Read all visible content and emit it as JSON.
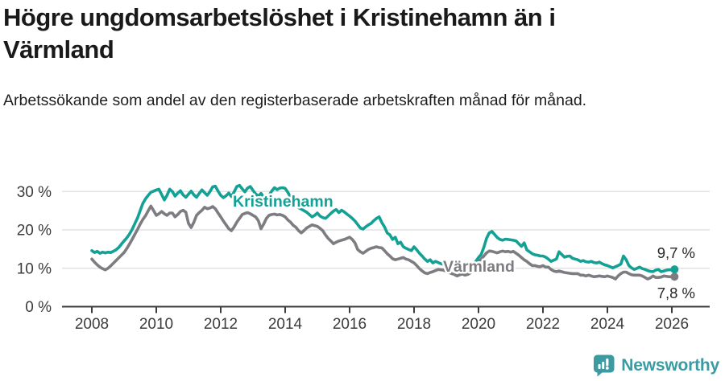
{
  "header": {
    "title": "Högre ungdomsarbetslöshet i Kristinehamn än i Värmland",
    "subtitle": "Arbetssökande som andel av den registerbaserade arbetskraften månad för månad."
  },
  "footer": {
    "brand": "Newsworthy",
    "brand_color": "#3b9aa2",
    "logo_icon": "bar-chart-speech-bubble-icon"
  },
  "colors": {
    "kristinehamn": "#14a195",
    "varmland": "#7c7c81",
    "axis_text": "#3c3c3c",
    "end_label_text": "#262626",
    "gridline": "#dcdcdc",
    "axis_line": "#3c3c3c"
  },
  "chart_data": {
    "type": "line",
    "unit": "%",
    "frequency": "monthly",
    "start_year": 2008,
    "start_month": 1,
    "end_year": 2026,
    "end_month": 2,
    "grid": true,
    "legend_position": "inline",
    "x_axis": {
      "tick_years": [
        2008,
        2010,
        2012,
        2014,
        2016,
        2018,
        2020,
        2022,
        2024,
        2026
      ]
    },
    "y_axis": {
      "range": [
        0,
        33
      ],
      "ticks": [
        {
          "value": 30,
          "label": "30 %"
        },
        {
          "value": 20,
          "label": "20 %"
        },
        {
          "value": 10,
          "label": "10 %"
        },
        {
          "value": 0,
          "label": "0 %"
        }
      ]
    },
    "series": [
      {
        "name": "Kristinehamn",
        "color": "#14a195",
        "end_label": "9,7 %",
        "end_value": 9.7,
        "values": [
          14.6,
          14.1,
          14.4,
          13.9,
          14.2,
          14.0,
          14.2,
          14.1,
          14.4,
          14.8,
          15.4,
          16.3,
          17.1,
          17.9,
          18.9,
          20.1,
          21.6,
          23.1,
          25.0,
          26.9,
          28.1,
          29.0,
          29.8,
          30.1,
          30.4,
          30.6,
          29.2,
          27.8,
          29.0,
          30.6,
          30.0,
          28.8,
          29.6,
          30.2,
          29.1,
          28.5,
          29.3,
          30.1,
          29.1,
          28.5,
          29.5,
          30.4,
          29.7,
          29.0,
          30.0,
          31.2,
          31.4,
          30.1,
          29.0,
          28.4,
          28.9,
          29.6,
          28.7,
          29.9,
          31.3,
          31.6,
          30.7,
          29.9,
          30.9,
          31.3,
          30.3,
          29.4,
          28.8,
          29.5,
          28.6,
          27.9,
          29.0,
          30.1,
          31.0,
          30.5,
          30.9,
          31.0,
          30.8,
          29.8,
          28.5,
          27.2,
          26.2,
          25.8,
          25.4,
          25.0,
          24.6,
          24.0,
          23.4,
          23.8,
          24.4,
          23.6,
          23.2,
          23.0,
          23.6,
          24.3,
          24.9,
          25.3,
          24.5,
          25.1,
          24.7,
          24.1,
          23.6,
          23.0,
          22.3,
          21.4,
          20.5,
          20.2,
          20.8,
          21.3,
          21.7,
          22.4,
          23.0,
          23.4,
          21.9,
          20.8,
          19.2,
          18.7,
          17.5,
          18.1,
          16.4,
          16.8,
          15.6,
          15.2,
          14.9,
          14.6,
          15.6,
          14.8,
          13.9,
          13.2,
          12.4,
          11.8,
          12.2,
          11.4,
          11.8,
          11.5,
          11.2,
          11.0,
          11.0,
          10.6,
          10.2,
          10.4,
          10.0,
          9.8,
          9.6,
          9.9,
          10.2,
          9.8,
          10.5,
          11.8,
          12.8,
          13.6,
          15.5,
          17.8,
          19.2,
          19.6,
          18.8,
          18.0,
          17.5,
          17.3,
          17.6,
          17.5,
          17.4,
          17.3,
          17.1,
          16.4,
          15.7,
          16.6,
          14.8,
          14.3,
          13.8,
          13.5,
          13.4,
          13.2,
          13.2,
          12.9,
          12.4,
          11.8,
          12.1,
          12.4,
          14.3,
          13.6,
          12.9,
          13.1,
          13.2,
          12.6,
          12.4,
          12.2,
          11.8,
          12.0,
          11.7,
          11.6,
          11.8,
          11.5,
          11.4,
          11.6,
          11.2,
          10.9,
          10.7,
          10.4,
          10.1,
          10.4,
          10.7,
          11.1,
          13.2,
          12.2,
          10.7,
          10.1,
          9.7,
          10.0,
          10.3,
          9.9,
          9.7,
          9.4,
          9.2,
          9.1,
          9.5,
          9.7,
          9.1,
          9.3,
          9.5,
          9.6,
          9.6,
          9.7
        ]
      },
      {
        "name": "Värmland",
        "color": "#7c7c81",
        "end_label": "7,8 %",
        "end_value": 7.8,
        "values": [
          12.4,
          11.6,
          10.9,
          10.3,
          9.9,
          9.6,
          10.0,
          10.6,
          11.3,
          12.0,
          12.7,
          13.4,
          14.1,
          15.1,
          16.3,
          17.5,
          18.8,
          20.1,
          21.5,
          22.7,
          23.7,
          25.0,
          26.2,
          25.0,
          23.8,
          24.2,
          24.8,
          24.2,
          23.8,
          24.4,
          24.4,
          23.4,
          24.0,
          24.8,
          25.1,
          24.6,
          21.7,
          20.6,
          22.0,
          23.8,
          24.5,
          25.1,
          25.9,
          25.5,
          25.7,
          26.1,
          25.5,
          24.4,
          23.4,
          22.3,
          21.3,
          20.3,
          19.8,
          20.8,
          22.0,
          23.0,
          24.0,
          24.3,
          24.5,
          24.2,
          23.8,
          23.4,
          22.4,
          20.3,
          21.5,
          23.0,
          23.8,
          24.0,
          24.1,
          23.9,
          24.0,
          23.8,
          23.4,
          22.6,
          22.0,
          21.2,
          20.7,
          19.8,
          19.2,
          19.8,
          20.5,
          20.9,
          21.3,
          21.1,
          20.9,
          20.4,
          19.8,
          18.7,
          17.8,
          17.1,
          16.4,
          16.8,
          17.1,
          17.3,
          17.5,
          17.8,
          18.1,
          17.5,
          16.6,
          14.9,
          14.3,
          13.9,
          14.4,
          14.9,
          15.2,
          15.4,
          15.6,
          15.4,
          15.3,
          14.6,
          13.8,
          13.2,
          12.5,
          12.2,
          12.4,
          12.6,
          12.8,
          12.4,
          12.2,
          11.8,
          11.4,
          10.7,
          9.9,
          9.3,
          8.8,
          8.6,
          8.9,
          9.1,
          9.4,
          9.7,
          9.6,
          9.5,
          9.2,
          8.9,
          8.6,
          8.4,
          8.0,
          8.3,
          8.5,
          8.2,
          8.4,
          8.8,
          9.7,
          10.8,
          11.8,
          12.4,
          13.2,
          14.0,
          14.5,
          14.4,
          14.2,
          14.0,
          14.3,
          14.5,
          14.3,
          14.4,
          14.2,
          14.4,
          13.9,
          13.4,
          12.8,
          12.2,
          11.8,
          11.2,
          10.7,
          10.7,
          10.5,
          10.4,
          10.7,
          10.3,
          10.3,
          9.7,
          9.3,
          9.1,
          9.3,
          9.1,
          8.9,
          8.8,
          8.7,
          8.6,
          8.6,
          8.6,
          8.2,
          8.2,
          8.0,
          8.2,
          8.0,
          7.8,
          7.9,
          8.0,
          7.9,
          7.8,
          8.0,
          7.8,
          7.6,
          7.2,
          8.0,
          8.6,
          9.0,
          9.0,
          8.6,
          8.3,
          8.2,
          8.2,
          8.2,
          8.0,
          7.6,
          7.2,
          7.5,
          8.0,
          7.6,
          7.6,
          7.7,
          8.0,
          7.9,
          7.8,
          7.8,
          7.8
        ]
      }
    ]
  }
}
